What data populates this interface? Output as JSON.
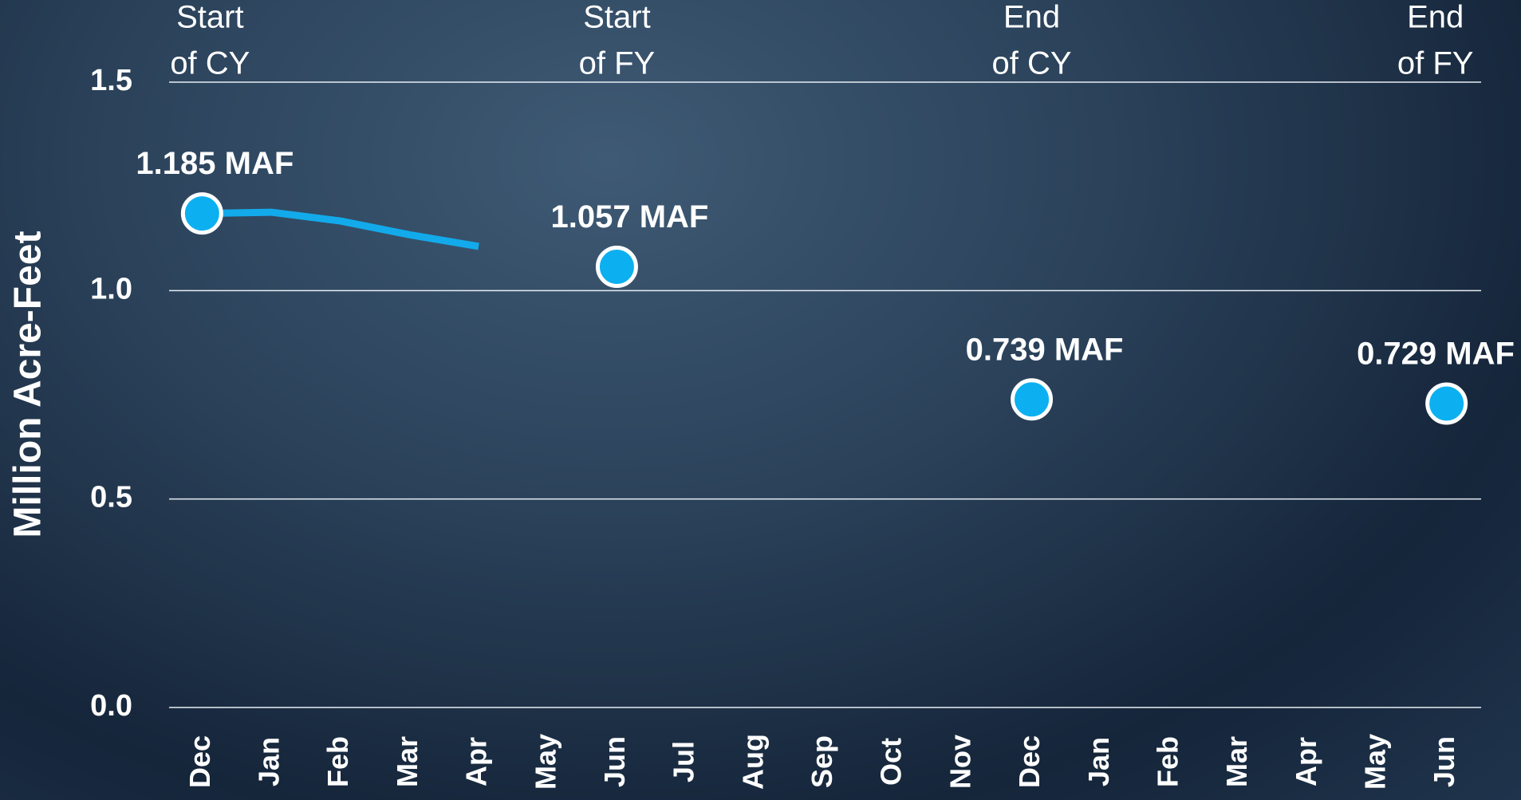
{
  "chart_data": {
    "type": "line",
    "ylabel": "Million Acre-Feet",
    "categories": [
      "Dec",
      "Jan",
      "Feb",
      "Mar",
      "Apr",
      "May",
      "Jun",
      "Jul",
      "Aug",
      "Sep",
      "Oct",
      "Nov",
      "Dec",
      "Jan",
      "Feb",
      "Mar",
      "Apr",
      "May",
      "Jun"
    ],
    "series": [
      {
        "color": "#12aaea",
        "values": [
          1.185,
          1.188,
          1.167,
          1.134,
          1.106,
          null,
          null,
          null,
          null,
          null,
          null,
          null,
          null,
          null,
          null,
          null,
          null,
          null,
          null
        ]
      },
      {
        "color": "#0cb0f0",
        "markers": true,
        "values": [
          1.185,
          null,
          null,
          null,
          null,
          null,
          1.057,
          null,
          null,
          null,
          null,
          null,
          0.739,
          null,
          null,
          null,
          null,
          null,
          0.729
        ],
        "value_labels": [
          "1.185 MAF",
          null,
          null,
          null,
          null,
          null,
          "1.057 MAF",
          null,
          null,
          null,
          null,
          null,
          "0.739 MAF",
          null,
          null,
          null,
          null,
          null,
          "0.729 MAF"
        ]
      }
    ],
    "period_labels": [
      [
        "Start",
        "of CY"
      ],
      null,
      null,
      null,
      null,
      null,
      [
        "Start",
        "of FY"
      ],
      null,
      null,
      null,
      null,
      null,
      [
        "End",
        "of CY"
      ],
      null,
      null,
      null,
      null,
      null,
      [
        "End",
        "of FY"
      ]
    ],
    "ylim": [
      0,
      1.5
    ],
    "yticks": [
      {
        "value": 0,
        "label": "0.0"
      },
      0.5,
      {
        "value": 1,
        "label": "1.0"
      },
      1.5
    ],
    "grid": true
  }
}
